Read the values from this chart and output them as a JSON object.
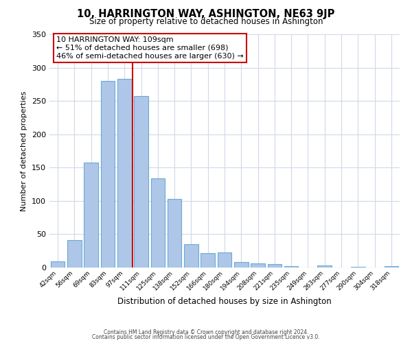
{
  "title": "10, HARRINGTON WAY, ASHINGTON, NE63 9JP",
  "subtitle": "Size of property relative to detached houses in Ashington",
  "xlabel": "Distribution of detached houses by size in Ashington",
  "ylabel": "Number of detached properties",
  "bar_labels": [
    "42sqm",
    "56sqm",
    "69sqm",
    "83sqm",
    "97sqm",
    "111sqm",
    "125sqm",
    "138sqm",
    "152sqm",
    "166sqm",
    "180sqm",
    "194sqm",
    "208sqm",
    "221sqm",
    "235sqm",
    "249sqm",
    "263sqm",
    "277sqm",
    "290sqm",
    "304sqm",
    "318sqm"
  ],
  "bar_values": [
    9,
    41,
    158,
    280,
    283,
    257,
    134,
    103,
    35,
    22,
    23,
    8,
    6,
    5,
    2,
    0,
    3,
    0,
    1,
    0,
    2
  ],
  "bar_color": "#aec6e8",
  "bar_edge_color": "#6aaad4",
  "marker_index": 5,
  "marker_line_color": "#cc0000",
  "annotation_text": "10 HARRINGTON WAY: 109sqm\n← 51% of detached houses are smaller (698)\n46% of semi-detached houses are larger (630) →",
  "annotation_box_color": "white",
  "annotation_box_edge_color": "#cc0000",
  "ylim": [
    0,
    350
  ],
  "yticks": [
    0,
    50,
    100,
    150,
    200,
    250,
    300,
    350
  ],
  "footer_line1": "Contains HM Land Registry data © Crown copyright and database right 2024.",
  "footer_line2": "Contains public sector information licensed under the Open Government Licence v3.0.",
  "background_color": "#ffffff",
  "grid_color": "#d0d8e8"
}
